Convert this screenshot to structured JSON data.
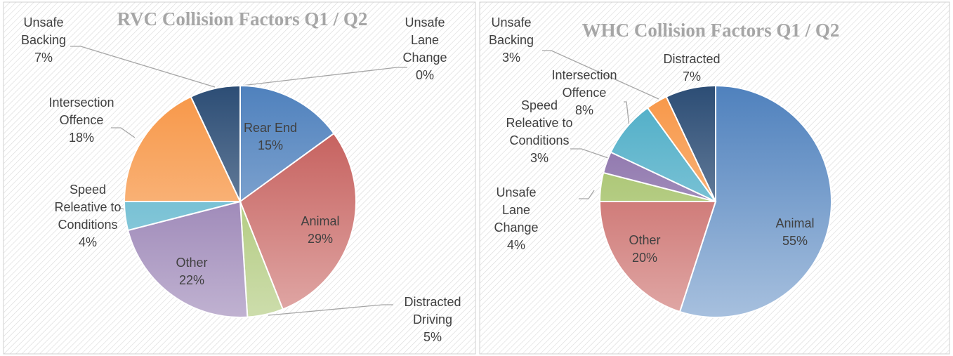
{
  "chart_data": [
    {
      "type": "pie",
      "title": "RVC Collision Factors Q1 / Q2",
      "categories": [
        "Rear End",
        "Animal",
        "Distracted Driving",
        "Other",
        "Speed Releative to Conditions",
        "Intersection Offence",
        "Unsafe Backing",
        "Unsafe Lane Change"
      ],
      "values": [
        15,
        29,
        5,
        22,
        4,
        18,
        7,
        0
      ],
      "value_labels": [
        "15%",
        "29%",
        "5%",
        "22%",
        "4%",
        "18%",
        "7%",
        "0%"
      ],
      "colors": [
        "#4f81bd",
        "#c0504d",
        "#9bbb59",
        "#8064a2",
        "#4bacc6",
        "#f79646",
        "#2c4d75",
        "#772c2a"
      ]
    },
    {
      "type": "pie",
      "title": "WHC Collision Factors Q1 / Q2",
      "categories": [
        "Animal",
        "Other",
        "Unsafe Lane Change",
        "Speed Releative to Conditions",
        "Intersection Offence",
        "Unsafe Backing",
        "Distracted"
      ],
      "values": [
        55,
        20,
        4,
        3,
        8,
        3,
        7
      ],
      "value_labels": [
        "55%",
        "20%",
        "4%",
        "3%",
        "8%",
        "3%",
        "7%"
      ],
      "colors": [
        "#4f81bd",
        "#c0504d",
        "#9bbb59",
        "#8064a2",
        "#4bacc6",
        "#f79646",
        "#2c4d75"
      ]
    }
  ]
}
